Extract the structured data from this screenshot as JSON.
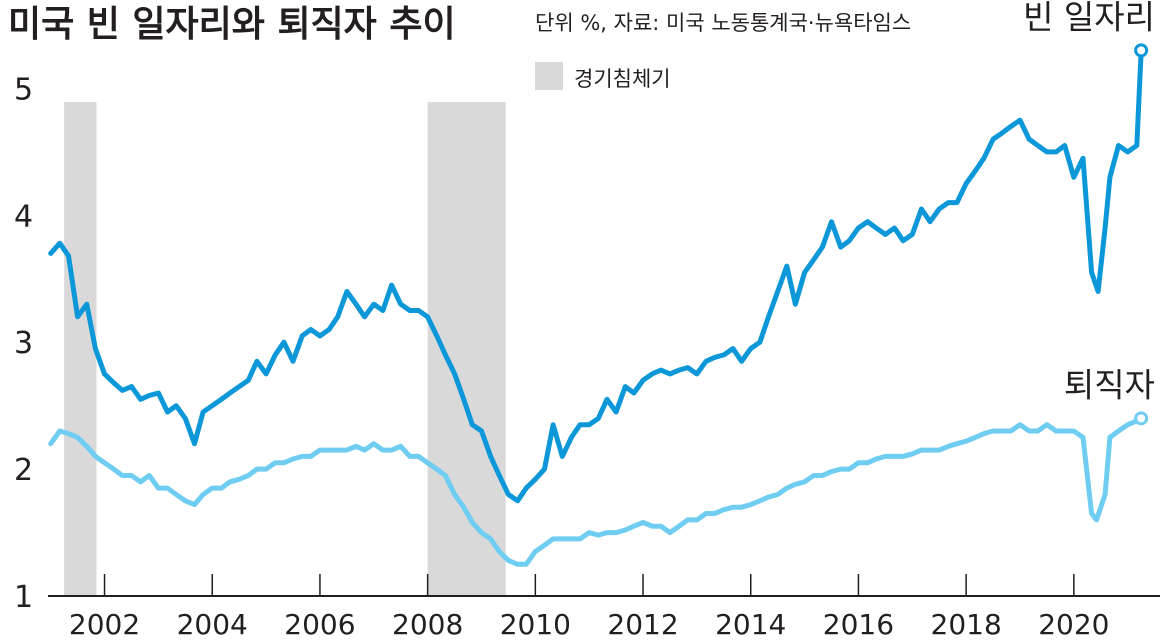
{
  "title": "미국 빈 일자리와 퇴직자 추이",
  "source": "단위 %, 자료: 미국 노동통계국·뉴욕타임스",
  "chart_data": {
    "type": "line",
    "ylim": [
      1,
      5.5
    ],
    "xlim": [
      2000.95,
      2021.6
    ],
    "yticks": [
      "1",
      "2",
      "3",
      "4",
      "5"
    ],
    "xticks": [
      "2002",
      "2004",
      "2006",
      "2008",
      "2010",
      "2012",
      "2014",
      "2016",
      "2018",
      "2020"
    ],
    "recession_label": "경기침체기",
    "recessions": [
      [
        2001.25,
        2001.85
      ],
      [
        2008.0,
        2009.45
      ]
    ],
    "colors": {
      "openings": "#0c97d9",
      "quits": "#6fcdf2",
      "recession": "#d9d9da",
      "axis": "#231f20"
    },
    "series": [
      {
        "name": "빈 일자리",
        "color": "#0c97d9",
        "points": [
          [
            2001.0,
            3.7
          ],
          [
            2001.17,
            3.78
          ],
          [
            2001.33,
            3.68
          ],
          [
            2001.5,
            3.2
          ],
          [
            2001.67,
            3.3
          ],
          [
            2001.83,
            2.95
          ],
          [
            2002.0,
            2.75
          ],
          [
            2002.17,
            2.68
          ],
          [
            2002.33,
            2.62
          ],
          [
            2002.5,
            2.65
          ],
          [
            2002.67,
            2.55
          ],
          [
            2002.83,
            2.58
          ],
          [
            2003.0,
            2.6
          ],
          [
            2003.17,
            2.45
          ],
          [
            2003.33,
            2.5
          ],
          [
            2003.5,
            2.4
          ],
          [
            2003.67,
            2.2
          ],
          [
            2003.83,
            2.45
          ],
          [
            2004.0,
            2.5
          ],
          [
            2004.17,
            2.55
          ],
          [
            2004.33,
            2.6
          ],
          [
            2004.5,
            2.65
          ],
          [
            2004.67,
            2.7
          ],
          [
            2004.83,
            2.85
          ],
          [
            2005.0,
            2.75
          ],
          [
            2005.17,
            2.9
          ],
          [
            2005.33,
            3.0
          ],
          [
            2005.5,
            2.85
          ],
          [
            2005.67,
            3.05
          ],
          [
            2005.83,
            3.1
          ],
          [
            2006.0,
            3.05
          ],
          [
            2006.17,
            3.1
          ],
          [
            2006.33,
            3.2
          ],
          [
            2006.5,
            3.4
          ],
          [
            2006.67,
            3.3
          ],
          [
            2006.83,
            3.2
          ],
          [
            2007.0,
            3.3
          ],
          [
            2007.17,
            3.25
          ],
          [
            2007.33,
            3.45
          ],
          [
            2007.5,
            3.3
          ],
          [
            2007.67,
            3.25
          ],
          [
            2007.83,
            3.25
          ],
          [
            2008.0,
            3.2
          ],
          [
            2008.17,
            3.05
          ],
          [
            2008.33,
            2.9
          ],
          [
            2008.5,
            2.75
          ],
          [
            2008.67,
            2.55
          ],
          [
            2008.83,
            2.35
          ],
          [
            2009.0,
            2.3
          ],
          [
            2009.17,
            2.1
          ],
          [
            2009.33,
            1.95
          ],
          [
            2009.5,
            1.8
          ],
          [
            2009.67,
            1.75
          ],
          [
            2009.83,
            1.85
          ],
          [
            2010.0,
            1.92
          ],
          [
            2010.17,
            2.0
          ],
          [
            2010.33,
            2.35
          ],
          [
            2010.5,
            2.1
          ],
          [
            2010.67,
            2.25
          ],
          [
            2010.83,
            2.35
          ],
          [
            2011.0,
            2.35
          ],
          [
            2011.17,
            2.4
          ],
          [
            2011.33,
            2.55
          ],
          [
            2011.5,
            2.45
          ],
          [
            2011.67,
            2.65
          ],
          [
            2011.83,
            2.6
          ],
          [
            2012.0,
            2.7
          ],
          [
            2012.17,
            2.75
          ],
          [
            2012.33,
            2.78
          ],
          [
            2012.5,
            2.75
          ],
          [
            2012.67,
            2.78
          ],
          [
            2012.83,
            2.8
          ],
          [
            2013.0,
            2.75
          ],
          [
            2013.17,
            2.85
          ],
          [
            2013.33,
            2.88
          ],
          [
            2013.5,
            2.9
          ],
          [
            2013.67,
            2.95
          ],
          [
            2013.83,
            2.85
          ],
          [
            2014.0,
            2.95
          ],
          [
            2014.17,
            3.0
          ],
          [
            2014.33,
            3.2
          ],
          [
            2014.5,
            3.4
          ],
          [
            2014.67,
            3.6
          ],
          [
            2014.83,
            3.3
          ],
          [
            2015.0,
            3.55
          ],
          [
            2015.17,
            3.65
          ],
          [
            2015.33,
            3.75
          ],
          [
            2015.5,
            3.95
          ],
          [
            2015.67,
            3.75
          ],
          [
            2015.83,
            3.8
          ],
          [
            2016.0,
            3.9
          ],
          [
            2016.17,
            3.95
          ],
          [
            2016.33,
            3.9
          ],
          [
            2016.5,
            3.85
          ],
          [
            2016.67,
            3.9
          ],
          [
            2016.83,
            3.8
          ],
          [
            2017.0,
            3.85
          ],
          [
            2017.17,
            4.05
          ],
          [
            2017.33,
            3.95
          ],
          [
            2017.5,
            4.05
          ],
          [
            2017.67,
            4.1
          ],
          [
            2017.83,
            4.1
          ],
          [
            2018.0,
            4.25
          ],
          [
            2018.17,
            4.35
          ],
          [
            2018.33,
            4.45
          ],
          [
            2018.5,
            4.6
          ],
          [
            2018.67,
            4.65
          ],
          [
            2018.83,
            4.7
          ],
          [
            2019.0,
            4.75
          ],
          [
            2019.17,
            4.6
          ],
          [
            2019.33,
            4.55
          ],
          [
            2019.5,
            4.5
          ],
          [
            2019.67,
            4.5
          ],
          [
            2019.83,
            4.55
          ],
          [
            2020.0,
            4.3
          ],
          [
            2020.17,
            4.45
          ],
          [
            2020.33,
            3.55
          ],
          [
            2020.45,
            3.4
          ],
          [
            2020.58,
            3.9
          ],
          [
            2020.67,
            4.3
          ],
          [
            2020.83,
            4.55
          ],
          [
            2021.0,
            4.5
          ],
          [
            2021.17,
            4.55
          ],
          [
            2021.25,
            5.3
          ]
        ]
      },
      {
        "name": "퇴직자",
        "color": "#6fcdf2",
        "points": [
          [
            2001.0,
            2.2
          ],
          [
            2001.17,
            2.3
          ],
          [
            2001.33,
            2.28
          ],
          [
            2001.5,
            2.25
          ],
          [
            2001.67,
            2.18
          ],
          [
            2001.83,
            2.1
          ],
          [
            2002.0,
            2.05
          ],
          [
            2002.17,
            2.0
          ],
          [
            2002.33,
            1.95
          ],
          [
            2002.5,
            1.95
          ],
          [
            2002.67,
            1.9
          ],
          [
            2002.83,
            1.95
          ],
          [
            2003.0,
            1.85
          ],
          [
            2003.17,
            1.85
          ],
          [
            2003.33,
            1.8
          ],
          [
            2003.5,
            1.75
          ],
          [
            2003.67,
            1.72
          ],
          [
            2003.83,
            1.8
          ],
          [
            2004.0,
            1.85
          ],
          [
            2004.17,
            1.85
          ],
          [
            2004.33,
            1.9
          ],
          [
            2004.5,
            1.92
          ],
          [
            2004.67,
            1.95
          ],
          [
            2004.83,
            2.0
          ],
          [
            2005.0,
            2.0
          ],
          [
            2005.17,
            2.05
          ],
          [
            2005.33,
            2.05
          ],
          [
            2005.5,
            2.08
          ],
          [
            2005.67,
            2.1
          ],
          [
            2005.83,
            2.1
          ],
          [
            2006.0,
            2.15
          ],
          [
            2006.17,
            2.15
          ],
          [
            2006.33,
            2.15
          ],
          [
            2006.5,
            2.15
          ],
          [
            2006.67,
            2.18
          ],
          [
            2006.83,
            2.15
          ],
          [
            2007.0,
            2.2
          ],
          [
            2007.17,
            2.15
          ],
          [
            2007.33,
            2.15
          ],
          [
            2007.5,
            2.18
          ],
          [
            2007.67,
            2.1
          ],
          [
            2007.83,
            2.1
          ],
          [
            2008.0,
            2.05
          ],
          [
            2008.17,
            2.0
          ],
          [
            2008.33,
            1.95
          ],
          [
            2008.5,
            1.8
          ],
          [
            2008.67,
            1.7
          ],
          [
            2008.83,
            1.58
          ],
          [
            2009.0,
            1.5
          ],
          [
            2009.17,
            1.45
          ],
          [
            2009.33,
            1.35
          ],
          [
            2009.5,
            1.28
          ],
          [
            2009.67,
            1.25
          ],
          [
            2009.83,
            1.25
          ],
          [
            2010.0,
            1.35
          ],
          [
            2010.17,
            1.4
          ],
          [
            2010.33,
            1.45
          ],
          [
            2010.5,
            1.45
          ],
          [
            2010.67,
            1.45
          ],
          [
            2010.83,
            1.45
          ],
          [
            2011.0,
            1.5
          ],
          [
            2011.17,
            1.48
          ],
          [
            2011.33,
            1.5
          ],
          [
            2011.5,
            1.5
          ],
          [
            2011.67,
            1.52
          ],
          [
            2011.83,
            1.55
          ],
          [
            2012.0,
            1.58
          ],
          [
            2012.17,
            1.55
          ],
          [
            2012.33,
            1.55
          ],
          [
            2012.5,
            1.5
          ],
          [
            2012.67,
            1.55
          ],
          [
            2012.83,
            1.6
          ],
          [
            2013.0,
            1.6
          ],
          [
            2013.17,
            1.65
          ],
          [
            2013.33,
            1.65
          ],
          [
            2013.5,
            1.68
          ],
          [
            2013.67,
            1.7
          ],
          [
            2013.83,
            1.7
          ],
          [
            2014.0,
            1.72
          ],
          [
            2014.17,
            1.75
          ],
          [
            2014.33,
            1.78
          ],
          [
            2014.5,
            1.8
          ],
          [
            2014.67,
            1.85
          ],
          [
            2014.83,
            1.88
          ],
          [
            2015.0,
            1.9
          ],
          [
            2015.17,
            1.95
          ],
          [
            2015.33,
            1.95
          ],
          [
            2015.5,
            1.98
          ],
          [
            2015.67,
            2.0
          ],
          [
            2015.83,
            2.0
          ],
          [
            2016.0,
            2.05
          ],
          [
            2016.17,
            2.05
          ],
          [
            2016.33,
            2.08
          ],
          [
            2016.5,
            2.1
          ],
          [
            2016.67,
            2.1
          ],
          [
            2016.83,
            2.1
          ],
          [
            2017.0,
            2.12
          ],
          [
            2017.17,
            2.15
          ],
          [
            2017.33,
            2.15
          ],
          [
            2017.5,
            2.15
          ],
          [
            2017.67,
            2.18
          ],
          [
            2017.83,
            2.2
          ],
          [
            2018.0,
            2.22
          ],
          [
            2018.17,
            2.25
          ],
          [
            2018.33,
            2.28
          ],
          [
            2018.5,
            2.3
          ],
          [
            2018.67,
            2.3
          ],
          [
            2018.83,
            2.3
          ],
          [
            2019.0,
            2.35
          ],
          [
            2019.17,
            2.3
          ],
          [
            2019.33,
            2.3
          ],
          [
            2019.5,
            2.35
          ],
          [
            2019.67,
            2.3
          ],
          [
            2019.83,
            2.3
          ],
          [
            2020.0,
            2.3
          ],
          [
            2020.17,
            2.25
          ],
          [
            2020.33,
            1.65
          ],
          [
            2020.42,
            1.6
          ],
          [
            2020.58,
            1.8
          ],
          [
            2020.67,
            2.25
          ],
          [
            2020.83,
            2.3
          ],
          [
            2021.0,
            2.35
          ],
          [
            2021.17,
            2.38
          ],
          [
            2021.25,
            2.4
          ]
        ]
      }
    ]
  }
}
